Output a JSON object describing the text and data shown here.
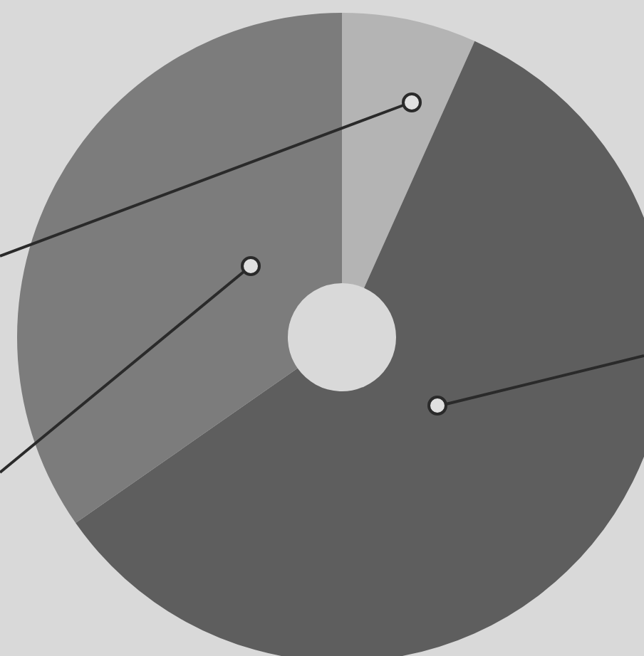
{
  "chart_data": {
    "type": "donut",
    "categories": [
      null,
      null,
      null
    ],
    "values": [
      6.7,
      58.6,
      34.7
    ],
    "colors": [
      "#b4b4b4",
      "#5e5e5e",
      "#7c7c7c"
    ]
  }
}
